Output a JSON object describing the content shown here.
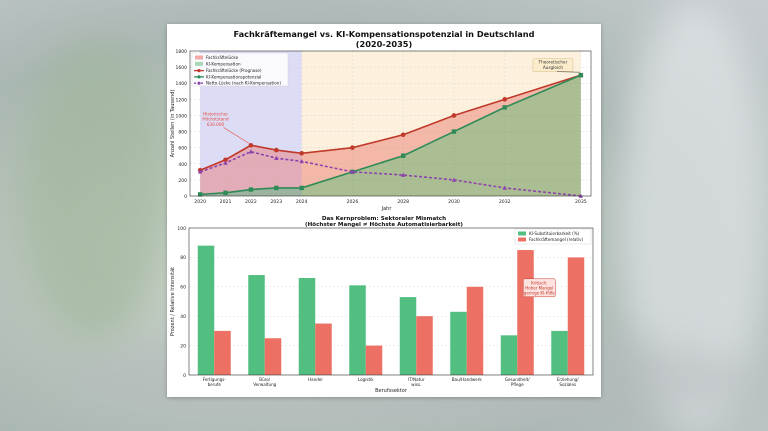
{
  "figure_title": "Fachkräftemangel vs. KI-Kompensationspotenzial in Deutschland",
  "figure_subtitle": "(2020-2035)",
  "chart_data": [
    {
      "type": "line",
      "xlabel": "Jahr",
      "ylabel": "Anzahl Stellen (in Tausend)",
      "xlim": [
        2019.6,
        2035.4
      ],
      "ylim": [
        0,
        1800
      ],
      "x_ticks": [
        "2020",
        "2021",
        "2022",
        "2023",
        "2024",
        "2026",
        "2028",
        "2030",
        "2032",
        "2035"
      ],
      "y_ticks": [
        "0",
        "200",
        "400",
        "600",
        "800",
        "1000",
        "1200",
        "1400",
        "1600",
        "1800"
      ],
      "x": [
        2020,
        2021,
        2022,
        2023,
        2024,
        2026,
        2028,
        2030,
        2032,
        2035
      ],
      "grid": true,
      "legend_position": "top-left",
      "shaded_regions": [
        {
          "from": 2020,
          "to": 2024,
          "color": "#dcdcf7"
        },
        {
          "from": 2024,
          "to": 2035,
          "color": "#fdf0dc"
        }
      ],
      "fill_legend": [
        {
          "name": "Fachkräftelücke",
          "color": "#f2a9a6"
        },
        {
          "name": "KI-Kompensation",
          "color": "#a9d8b6"
        }
      ],
      "series": [
        {
          "name": "Fachkräftelücke (Prognose)",
          "color": "#c0392b",
          "marker": "circle",
          "values": [
            320,
            450,
            630,
            570,
            530,
            600,
            760,
            1000,
            1200,
            1500
          ]
        },
        {
          "name": "KI-Kompensationspotenzial",
          "color": "#2e8b57",
          "marker": "square",
          "values": [
            20,
            40,
            80,
            100,
            100,
            300,
            500,
            800,
            1100,
            1500
          ]
        },
        {
          "name": "Netto-Lücke (nach KI-Kompensation)",
          "color": "#8e44ad",
          "marker": "triangle",
          "dashed": true,
          "values": [
            300,
            410,
            550,
            470,
            430,
            300,
            260,
            200,
            100,
            0
          ]
        }
      ],
      "annotations": [
        {
          "text": [
            "Historischer",
            "Höchststand",
            "630.000"
          ],
          "x": 2022,
          "y": 630,
          "color": "#e74c3c"
        },
        {
          "text": [
            "Theoretischer",
            "Ausgleich"
          ],
          "x": 2035,
          "y": 1500,
          "color": "#333333"
        }
      ]
    },
    {
      "type": "bar",
      "title": "Das Kernproblem: Sektoraler Mismatch",
      "subtitle": "(Höchster Mangel ≠ Höchste Automatisierbarkeit)",
      "xlabel": "Berufssektor",
      "ylabel": "Prozent / Relative Intensität",
      "ylim": [
        0,
        100
      ],
      "y_ticks": [
        "0",
        "20",
        "40",
        "60",
        "80",
        "100"
      ],
      "grid": true,
      "legend_position": "top-right",
      "categories": [
        [
          "Fertigungs-",
          "berufe"
        ],
        [
          "Büro/",
          "Verwaltung"
        ],
        [
          "Handel"
        ],
        [
          "Logistik"
        ],
        [
          "IT/Natur",
          "wiss."
        ],
        [
          "Bau/Handwerk"
        ],
        [
          "Gesundheit/",
          "Pflege"
        ],
        [
          "Erziehung/",
          "Soziales"
        ]
      ],
      "series": [
        {
          "name": "KI-Substituierbarkeit (%)",
          "color": "#52be80",
          "values": [
            88,
            68,
            66,
            61,
            53,
            43,
            27,
            30
          ]
        },
        {
          "name": "Fachkräftemangel (relativ)",
          "color": "#ec7063",
          "values": [
            30,
            25,
            35,
            20,
            40,
            60,
            85,
            80
          ]
        }
      ],
      "annotations": [
        {
          "text": [
            "Kritisch:",
            "Hoher Mangel",
            "geringe KI-Hilfe"
          ],
          "category_index": 6,
          "y": 60,
          "color": "#c0392b"
        }
      ]
    }
  ]
}
